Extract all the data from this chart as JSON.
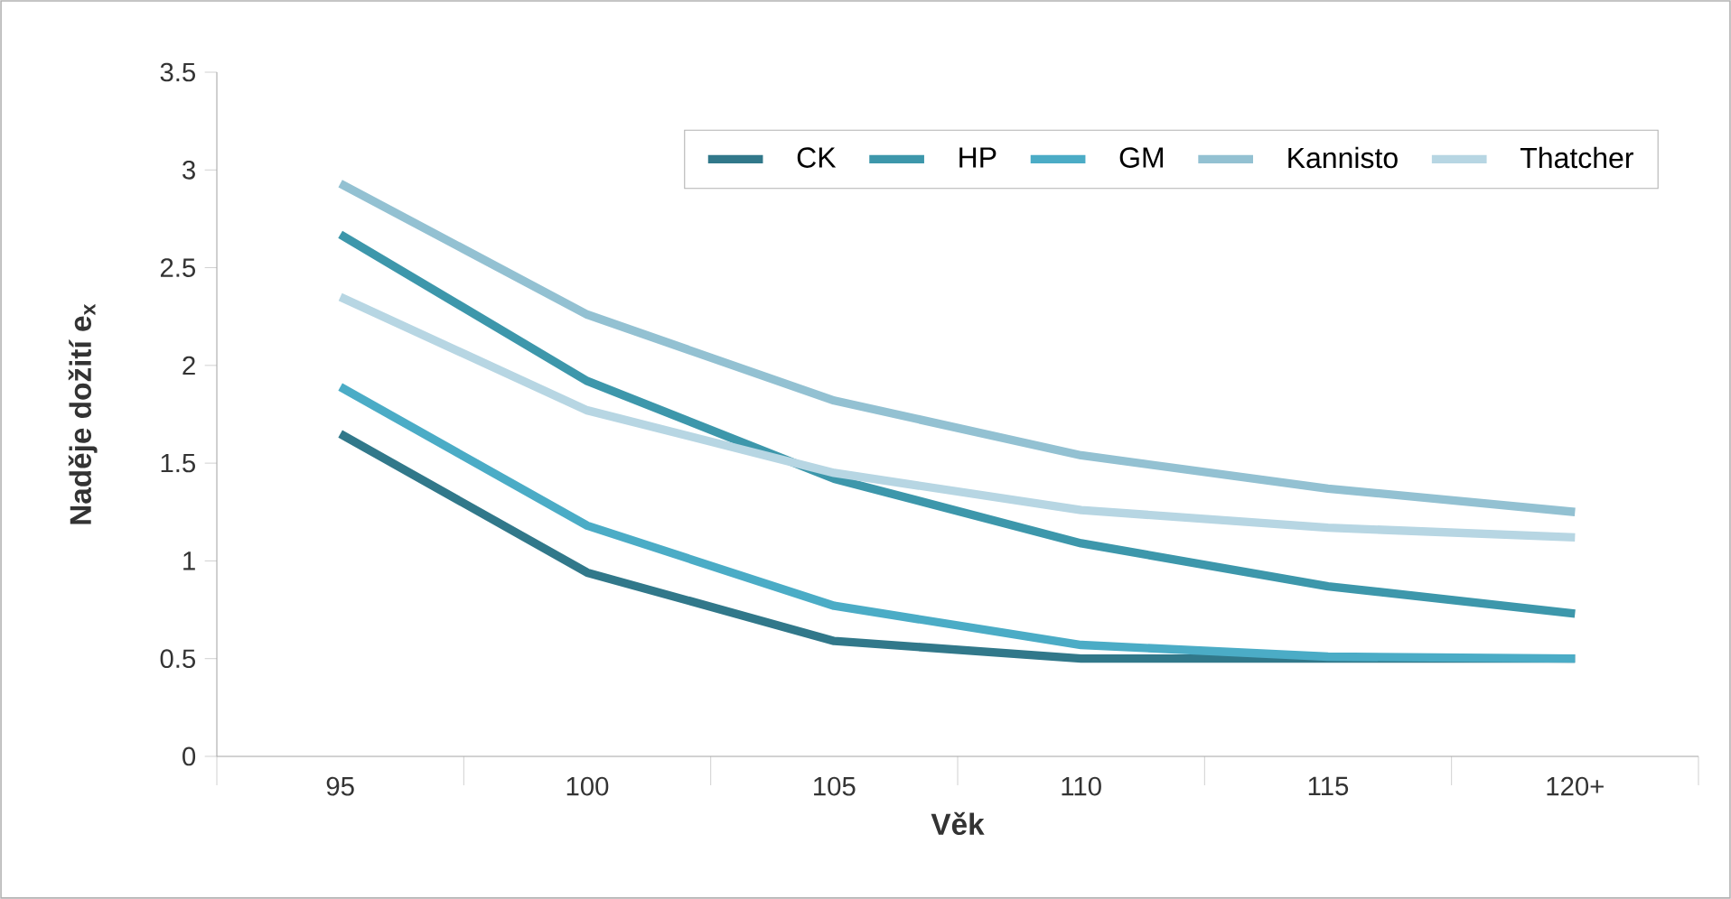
{
  "chart_data": {
    "type": "line",
    "xlabel": "Věk",
    "ylabel": "Naděje dožití e$_{x}$",
    "categories": [
      "95",
      "100",
      "105",
      "110",
      "115",
      "120+"
    ],
    "ylim": [
      0,
      3.5
    ],
    "yticks": [
      0,
      0.5,
      1,
      1.5,
      2,
      2.5,
      3,
      3.5
    ],
    "grid": false,
    "legend": "top right",
    "marker": "none",
    "line_style": "solid",
    "series": [
      {
        "name": "CK",
        "color": "#31788a",
        "values": [
          1.65,
          0.94,
          0.59,
          0.5,
          0.5,
          0.5
        ]
      },
      {
        "name": "HP",
        "color": "#3d97ab",
        "values": [
          2.67,
          1.92,
          1.42,
          1.09,
          0.87,
          0.73
        ]
      },
      {
        "name": "GM",
        "color": "#4bacc6",
        "values": [
          1.89,
          1.18,
          0.77,
          0.57,
          0.51,
          0.5
        ]
      },
      {
        "name": "Kannisto",
        "color": "#93c1d2",
        "values": [
          2.93,
          2.26,
          1.82,
          1.54,
          1.37,
          1.25
        ]
      },
      {
        "name": "Thatcher",
        "color": "#b7d6e3",
        "values": [
          2.35,
          1.77,
          1.45,
          1.26,
          1.17,
          1.12
        ]
      }
    ]
  }
}
